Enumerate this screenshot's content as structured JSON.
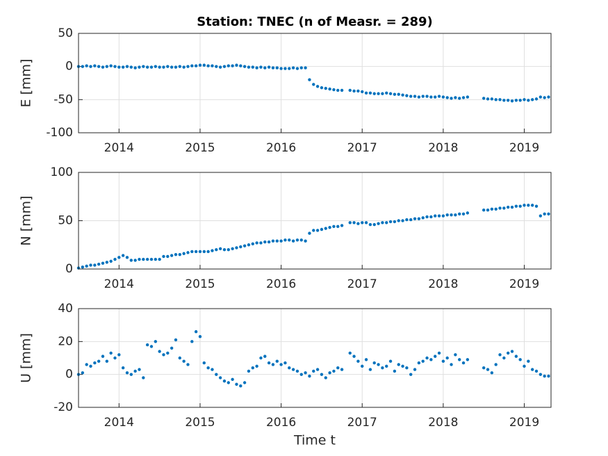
{
  "chart_data": [
    {
      "type": "scatter",
      "title": "Station: TNEC (n of Measr. = 289)",
      "ylabel": "E [mm]",
      "color": "#0072bd",
      "grid": true,
      "xlim": [
        2013.5,
        2019.33
      ],
      "xticks": [
        2014,
        2015,
        2016,
        2017,
        2018,
        2019
      ],
      "ylim": [
        -100,
        50
      ],
      "yticks": [
        -100,
        -50,
        0,
        50
      ],
      "x": [
        2013.5,
        2013.55,
        2013.6,
        2013.65,
        2013.7,
        2013.75,
        2013.8,
        2013.85,
        2013.9,
        2013.95,
        2014,
        2014.05,
        2014.1,
        2014.15,
        2014.2,
        2014.25,
        2014.3,
        2014.35,
        2014.4,
        2014.45,
        2014.5,
        2014.55,
        2014.6,
        2014.65,
        2014.7,
        2014.75,
        2014.8,
        2014.85,
        2014.9,
        2014.95,
        2015,
        2015.05,
        2015.1,
        2015.15,
        2015.2,
        2015.25,
        2015.3,
        2015.35,
        2015.4,
        2015.45,
        2015.5,
        2015.55,
        2015.6,
        2015.65,
        2015.7,
        2015.75,
        2015.8,
        2015.85,
        2015.9,
        2015.95,
        2016,
        2016.05,
        2016.1,
        2016.15,
        2016.2,
        2016.25,
        2016.3,
        2016.35,
        2016.4,
        2016.45,
        2016.5,
        2016.55,
        2016.6,
        2016.65,
        2016.7,
        2016.75,
        2016.85,
        2016.9,
        2016.95,
        2017,
        2017.05,
        2017.1,
        2017.15,
        2017.2,
        2017.25,
        2017.3,
        2017.35,
        2017.4,
        2017.45,
        2017.5,
        2017.55,
        2017.6,
        2017.65,
        2017.7,
        2017.75,
        2017.8,
        2017.85,
        2017.9,
        2017.95,
        2018,
        2018.05,
        2018.1,
        2018.15,
        2018.2,
        2018.25,
        2018.3,
        2018.5,
        2018.55,
        2018.6,
        2018.65,
        2018.7,
        2018.75,
        2018.8,
        2018.85,
        2018.9,
        2018.95,
        2019,
        2019.05,
        2019.1,
        2019.15,
        2019.2,
        2019.25,
        2019.3
      ],
      "values": [
        0,
        0,
        1,
        0,
        1,
        0,
        -1,
        0,
        1,
        0,
        -1,
        -1,
        0,
        -1,
        -2,
        -1,
        0,
        -1,
        -1,
        0,
        -1,
        -1,
        0,
        -1,
        -1,
        0,
        -1,
        0,
        1,
        1,
        2,
        2,
        1,
        1,
        0,
        -1,
        0,
        1,
        1,
        2,
        1,
        0,
        -1,
        -1,
        -2,
        -1,
        -2,
        -1,
        -2,
        -2,
        -3,
        -3,
        -3,
        -2,
        -3,
        -2,
        -2,
        -20,
        -27,
        -30,
        -32,
        -33,
        -34,
        -35,
        -36,
        -36,
        -36,
        -37,
        -37,
        -38,
        -40,
        -40,
        -41,
        -41,
        -41,
        -40,
        -41,
        -42,
        -42,
        -43,
        -44,
        -45,
        -45,
        -46,
        -45,
        -45,
        -46,
        -46,
        -45,
        -46,
        -47,
        -48,
        -47,
        -48,
        -47,
        -46,
        -48,
        -49,
        -49,
        -50,
        -50,
        -51,
        -51,
        -52,
        -51,
        -51,
        -50,
        -51,
        -50,
        -49,
        -46,
        -47,
        -46
      ]
    },
    {
      "type": "scatter",
      "ylabel": "N [mm]",
      "color": "#0072bd",
      "grid": true,
      "xlim": [
        2013.5,
        2019.33
      ],
      "xticks": [
        2014,
        2015,
        2016,
        2017,
        2018,
        2019
      ],
      "ylim": [
        0,
        100
      ],
      "yticks": [
        0,
        50,
        100
      ],
      "x": [
        2013.5,
        2013.55,
        2013.6,
        2013.65,
        2013.7,
        2013.75,
        2013.8,
        2013.85,
        2013.9,
        2013.95,
        2014,
        2014.05,
        2014.1,
        2014.15,
        2014.2,
        2014.25,
        2014.3,
        2014.35,
        2014.4,
        2014.45,
        2014.5,
        2014.55,
        2014.6,
        2014.65,
        2014.7,
        2014.75,
        2014.8,
        2014.85,
        2014.9,
        2014.95,
        2015,
        2015.05,
        2015.1,
        2015.15,
        2015.2,
        2015.25,
        2015.3,
        2015.35,
        2015.4,
        2015.45,
        2015.5,
        2015.55,
        2015.6,
        2015.65,
        2015.7,
        2015.75,
        2015.8,
        2015.85,
        2015.9,
        2015.95,
        2016,
        2016.05,
        2016.1,
        2016.15,
        2016.2,
        2016.25,
        2016.3,
        2016.35,
        2016.4,
        2016.45,
        2016.5,
        2016.55,
        2016.6,
        2016.65,
        2016.7,
        2016.75,
        2016.85,
        2016.9,
        2016.95,
        2017,
        2017.05,
        2017.1,
        2017.15,
        2017.2,
        2017.25,
        2017.3,
        2017.35,
        2017.4,
        2017.45,
        2017.5,
        2017.55,
        2017.6,
        2017.65,
        2017.7,
        2017.75,
        2017.8,
        2017.85,
        2017.9,
        2017.95,
        2018,
        2018.05,
        2018.1,
        2018.15,
        2018.2,
        2018.25,
        2018.3,
        2018.5,
        2018.55,
        2018.6,
        2018.65,
        2018.7,
        2018.75,
        2018.8,
        2018.85,
        2018.9,
        2018.95,
        2019,
        2019.05,
        2019.1,
        2019.15,
        2019.2,
        2019.25,
        2019.3
      ],
      "values": [
        1,
        2,
        3,
        4,
        4,
        5,
        6,
        7,
        8,
        10,
        12,
        14,
        12,
        9,
        9,
        10,
        10,
        10,
        10,
        10,
        10,
        13,
        13,
        14,
        15,
        15,
        16,
        17,
        18,
        18,
        18,
        18,
        18,
        19,
        20,
        21,
        20,
        20,
        21,
        22,
        23,
        24,
        25,
        26,
        27,
        27,
        28,
        28,
        29,
        29,
        29,
        30,
        30,
        29,
        30,
        30,
        29,
        37,
        40,
        40,
        41,
        42,
        43,
        44,
        44,
        45,
        48,
        48,
        47,
        48,
        48,
        46,
        46,
        47,
        48,
        48,
        49,
        49,
        50,
        50,
        51,
        51,
        52,
        52,
        53,
        54,
        54,
        55,
        55,
        55,
        56,
        56,
        56,
        57,
        57,
        58,
        61,
        61,
        62,
        62,
        63,
        63,
        64,
        64,
        65,
        65,
        66,
        66,
        66,
        65,
        55,
        57,
        57
      ]
    },
    {
      "type": "scatter",
      "ylabel": "U [mm]",
      "xlabel": "Time t",
      "color": "#0072bd",
      "grid": true,
      "xlim": [
        2013.5,
        2019.33
      ],
      "xticks": [
        2014,
        2015,
        2016,
        2017,
        2018,
        2019
      ],
      "ylim": [
        -20,
        40
      ],
      "yticks": [
        -20,
        0,
        20,
        40
      ],
      "x": [
        2013.5,
        2013.55,
        2013.6,
        2013.65,
        2013.7,
        2013.75,
        2013.8,
        2013.85,
        2013.9,
        2013.95,
        2014,
        2014.05,
        2014.1,
        2014.15,
        2014.2,
        2014.25,
        2014.3,
        2014.35,
        2014.4,
        2014.45,
        2014.5,
        2014.55,
        2014.6,
        2014.65,
        2014.7,
        2014.75,
        2014.8,
        2014.85,
        2014.9,
        2014.95,
        2015,
        2015.05,
        2015.1,
        2015.15,
        2015.2,
        2015.25,
        2015.3,
        2015.35,
        2015.4,
        2015.45,
        2015.5,
        2015.55,
        2015.6,
        2015.65,
        2015.7,
        2015.75,
        2015.8,
        2015.85,
        2015.9,
        2015.95,
        2016,
        2016.05,
        2016.1,
        2016.15,
        2016.2,
        2016.25,
        2016.3,
        2016.35,
        2016.4,
        2016.45,
        2016.5,
        2016.55,
        2016.6,
        2016.65,
        2016.7,
        2016.75,
        2016.85,
        2016.9,
        2016.95,
        2017,
        2017.05,
        2017.1,
        2017.15,
        2017.2,
        2017.25,
        2017.3,
        2017.35,
        2017.4,
        2017.45,
        2017.5,
        2017.55,
        2017.6,
        2017.65,
        2017.7,
        2017.75,
        2017.8,
        2017.85,
        2017.9,
        2017.95,
        2018,
        2018.05,
        2018.1,
        2018.15,
        2018.2,
        2018.25,
        2018.3,
        2018.5,
        2018.55,
        2018.6,
        2018.65,
        2018.7,
        2018.75,
        2018.8,
        2018.85,
        2018.9,
        2018.95,
        2019,
        2019.05,
        2019.1,
        2019.15,
        2019.2,
        2019.25,
        2019.3
      ],
      "values": [
        0,
        1,
        6,
        5,
        7,
        8,
        11,
        8,
        13,
        10,
        12,
        4,
        1,
        0,
        2,
        3,
        -2,
        18,
        17,
        20,
        14,
        12,
        13,
        16,
        21,
        10,
        8,
        6,
        20,
        26,
        23,
        7,
        4,
        3,
        0,
        -2,
        -4,
        -5,
        -3,
        -6,
        -7,
        -5,
        2,
        4,
        5,
        10,
        11,
        7,
        6,
        8,
        6,
        7,
        4,
        3,
        2,
        0,
        1,
        -1,
        2,
        3,
        0,
        -2,
        1,
        2,
        4,
        3,
        13,
        11,
        8,
        5,
        9,
        3,
        7,
        6,
        4,
        5,
        8,
        2,
        6,
        5,
        4,
        0,
        3,
        7,
        8,
        10,
        9,
        11,
        13,
        8,
        10,
        6,
        12,
        9,
        7,
        9,
        4,
        3,
        1,
        6,
        12,
        10,
        13,
        14,
        11,
        9,
        5,
        8,
        3,
        2,
        0,
        -1,
        -1
      ]
    }
  ]
}
